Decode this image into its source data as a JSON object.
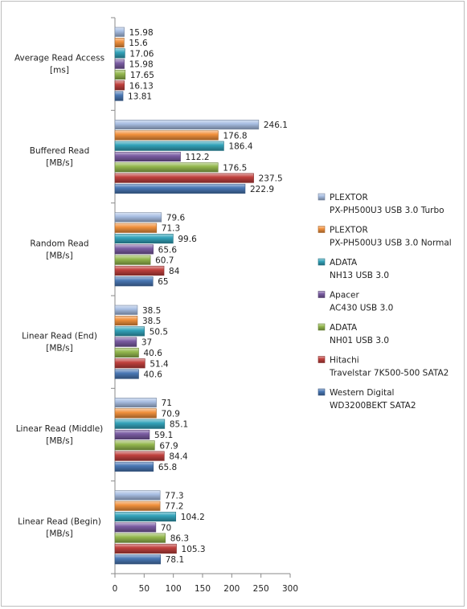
{
  "chart_data": {
    "type": "bar",
    "orientation": "horizontal",
    "categories": [
      [
        "Average Read Access",
        "[ms]"
      ],
      [
        "Buffered Read",
        "[MB/s]"
      ],
      [
        "Random Read",
        "[MB/s]"
      ],
      [
        "Linear Read (End)",
        "[MB/s]"
      ],
      [
        "Linear Read (Middle)",
        "[MB/s]"
      ],
      [
        "Linear Read (Begin)",
        "[MB/s]"
      ]
    ],
    "series": [
      {
        "name": [
          "PLEXTOR",
          "PX-PH500U3 USB 3.0 Turbo"
        ],
        "color": "#a9bfe3",
        "values": [
          15.98,
          246.1,
          79.6,
          38.5,
          71,
          77.3
        ]
      },
      {
        "name": [
          "PLEXTOR",
          "PX-PH500U3 USB 3.0 Normal"
        ],
        "color": "#f2913d",
        "values": [
          15.6,
          176.8,
          71.3,
          38.5,
          70.9,
          77.2
        ]
      },
      {
        "name": [
          "ADATA",
          "NH13 USB 3.0"
        ],
        "color": "#33a3ba",
        "values": [
          17.06,
          186.4,
          99.6,
          50.5,
          85.1,
          104.2
        ]
      },
      {
        "name": [
          "Apacer",
          "AC430 USB 3.0"
        ],
        "color": "#7b5da3",
        "values": [
          15.98,
          112.2,
          65.6,
          37,
          59.1,
          70
        ]
      },
      {
        "name": [
          "ADATA",
          "NH01 USB 3.0"
        ],
        "color": "#94b84e",
        "values": [
          17.65,
          176.5,
          60.7,
          40.6,
          67.9,
          86.3
        ]
      },
      {
        "name": [
          "Hitachi",
          "Travelstar 7K500-500 SATA2"
        ],
        "color": "#c0403d",
        "values": [
          16.13,
          237.5,
          84,
          51.4,
          84.4,
          105.3
        ]
      },
      {
        "name": [
          "Western Digital",
          "WD3200BEKT SATA2"
        ],
        "color": "#4a78b5",
        "values": [
          13.81,
          222.9,
          65,
          40.6,
          65.8,
          78.1
        ]
      }
    ],
    "value_labels": [
      [
        "15.98",
        "246.1",
        "79.6",
        "38.5",
        "71",
        "77.3"
      ],
      [
        "15.6",
        "176.8",
        "71.3",
        "38.5",
        "70.9",
        "77.2"
      ],
      [
        "17.06",
        "186.4",
        "99.6",
        "50.5",
        "85.1",
        "104.2"
      ],
      [
        "15.98",
        "112.2",
        "65.6",
        "37",
        "59.1",
        "70"
      ],
      [
        "17.65",
        "176.5",
        "60.7",
        "40.6",
        "67.9",
        "86.3"
      ],
      [
        "16.13",
        "237.5",
        "84",
        "51.4",
        "84.4",
        "105.3"
      ],
      [
        "13.81",
        "222.9",
        "65",
        "40.6",
        "65.8",
        "78.1"
      ]
    ],
    "xlim": [
      0,
      300
    ],
    "xticks": [
      "0",
      "50",
      "100",
      "150",
      "200",
      "250",
      "300"
    ],
    "grid": false,
    "legend_position": "right"
  }
}
